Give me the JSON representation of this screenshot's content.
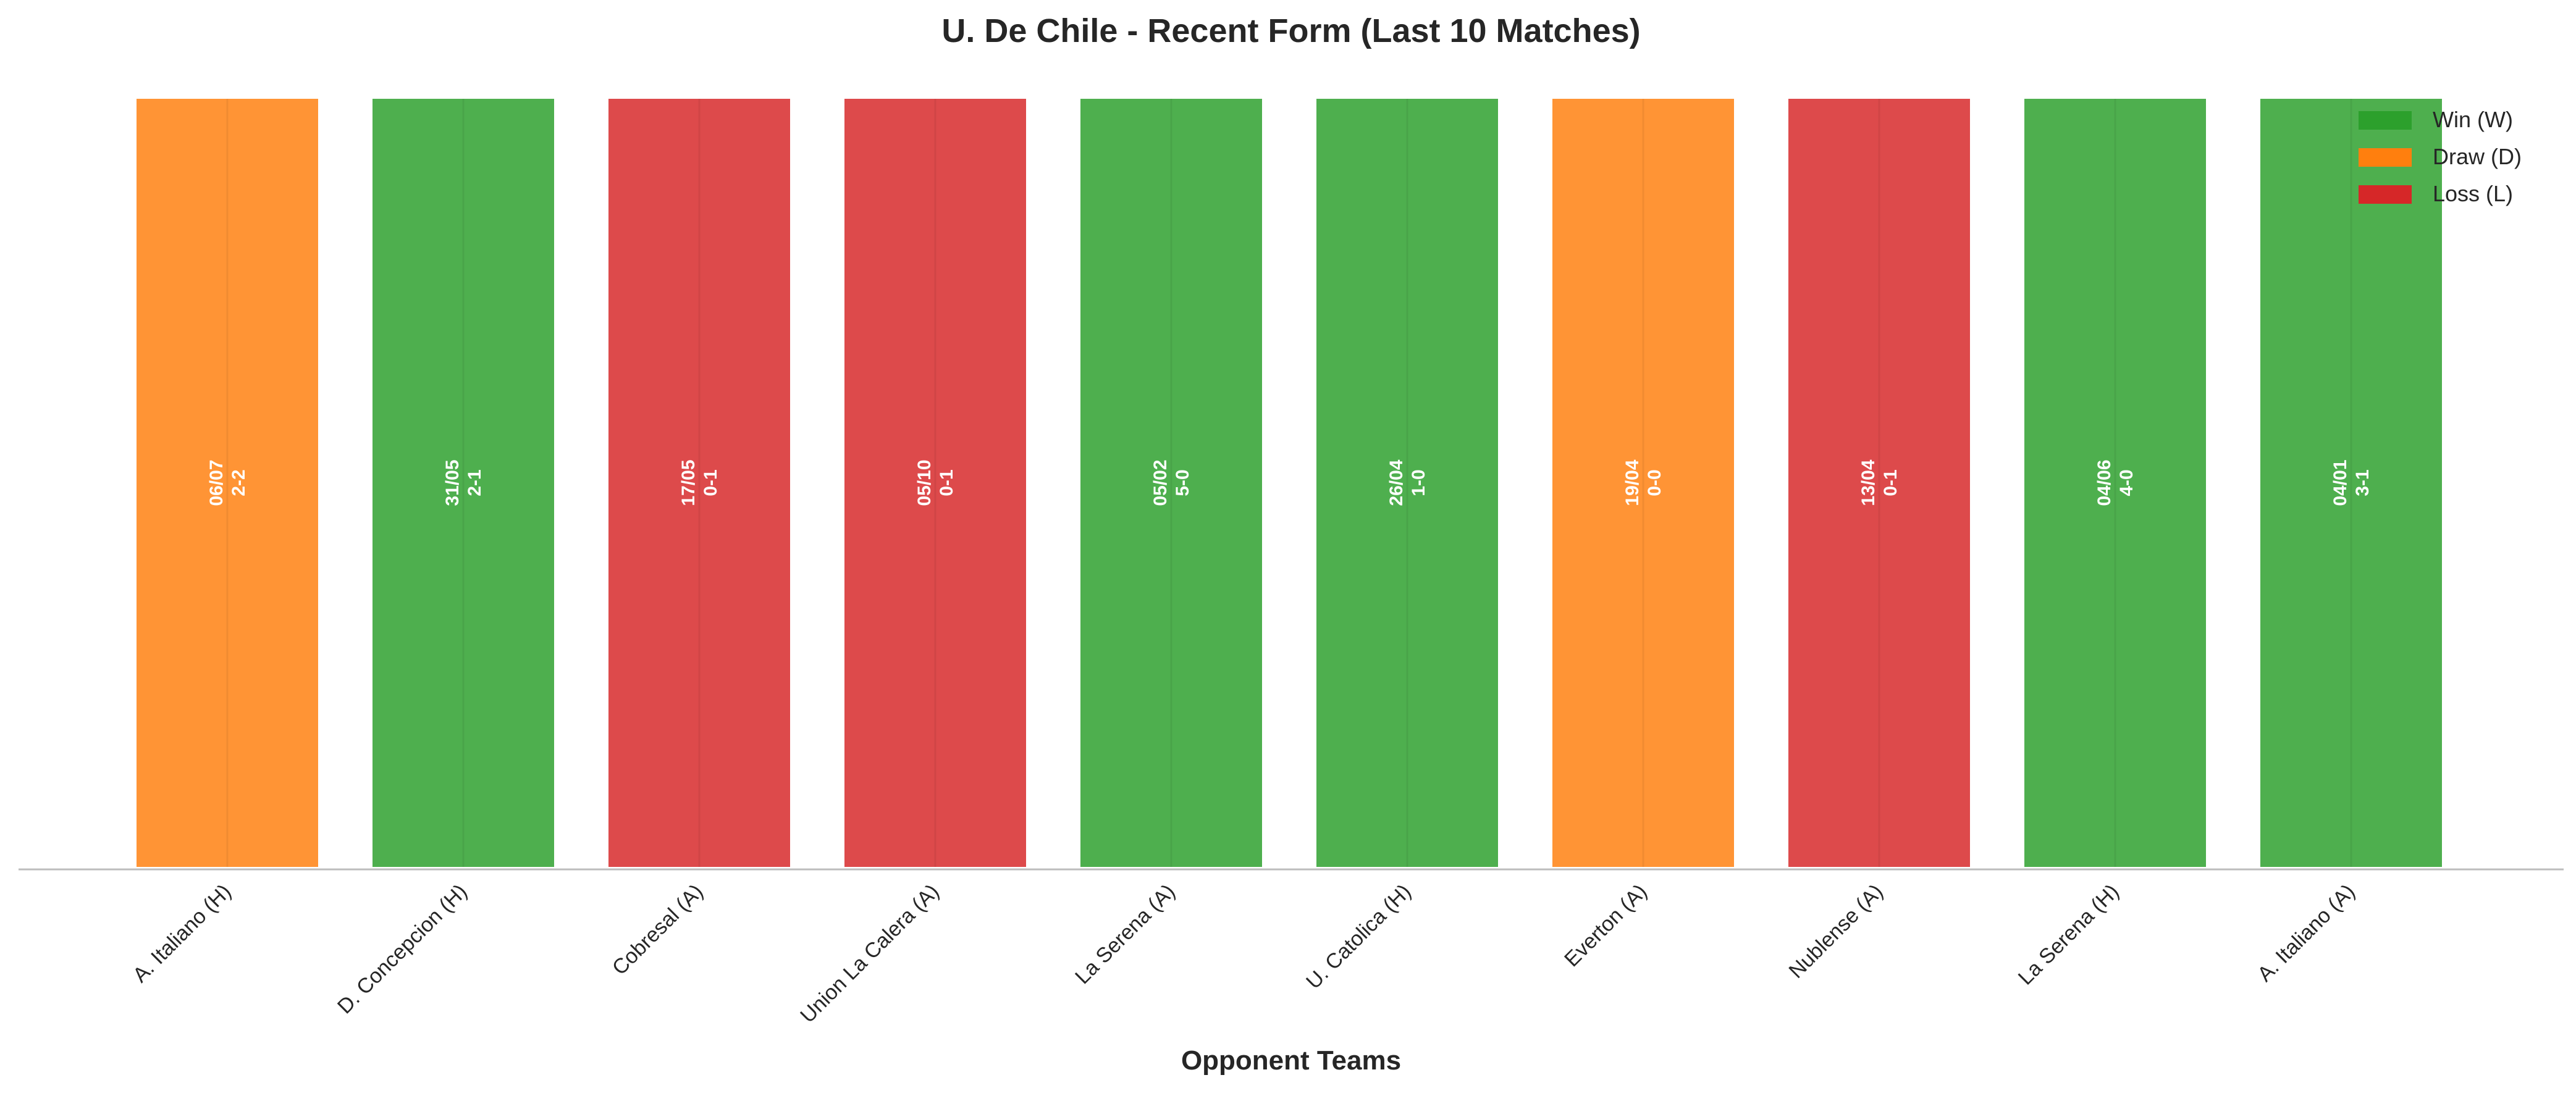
{
  "chart_data": {
    "type": "bar",
    "title": "U. De Chile - Recent Form (Last 10 Matches)",
    "xlabel": "Opponent Teams",
    "ylabel": "",
    "ylim": [
      0,
      1
    ],
    "grid": false,
    "legend_position": "top-right",
    "categories": [
      "A. Italiano (H)",
      "D. Concepcion (H)",
      "Cobresal (A)",
      "Union La Calera (A)",
      "La Serena (A)",
      "U. Catolica (H)",
      "Everton (A)",
      "Nublense (A)",
      "La Serena (H)",
      "A. Italiano (A)"
    ],
    "values": [
      1,
      1,
      1,
      1,
      1,
      1,
      1,
      1,
      1,
      1
    ],
    "results": [
      "D",
      "W",
      "L",
      "L",
      "W",
      "W",
      "D",
      "L",
      "W",
      "W"
    ],
    "dates": [
      "06/07",
      "31/05",
      "17/05",
      "05/10",
      "05/02",
      "26/04",
      "19/04",
      "13/04",
      "04/06",
      "04/01"
    ],
    "scores": [
      "2-2",
      "2-1",
      "0-1",
      "0-1",
      "5-0",
      "1-0",
      "0-0",
      "0-1",
      "4-0",
      "3-1"
    ],
    "legend": [
      {
        "key": "W",
        "label": "Win (W)",
        "color": "#2ca02c"
      },
      {
        "key": "D",
        "label": "Draw (D)",
        "color": "#ff7f0e"
      },
      {
        "key": "L",
        "label": "Loss (L)",
        "color": "#d62728"
      }
    ]
  }
}
